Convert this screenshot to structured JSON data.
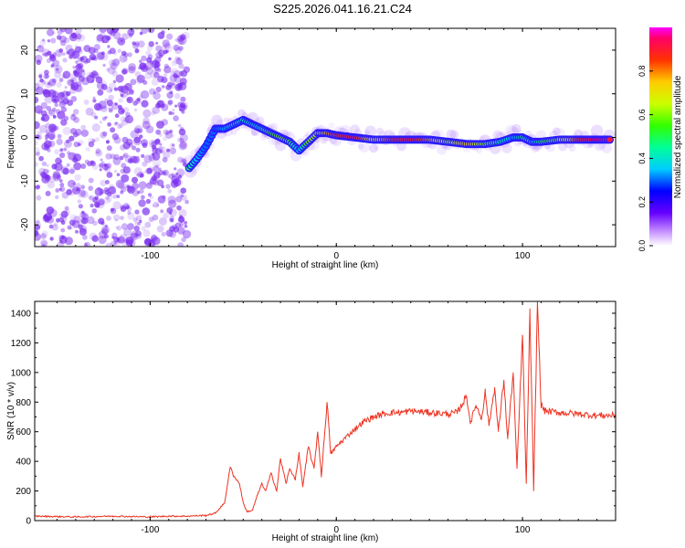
{
  "title": "S225.2026.041.16.21.C24",
  "colors": {
    "line": "#ee3322",
    "scatter": "#7a2cf0",
    "axes": "#000000"
  },
  "chart_data": [
    {
      "type": "heatmap",
      "title": "S225.2026.041.16.21.C24",
      "xlabel": "Height of straight line (km)",
      "ylabel": "Frequency (Hz)",
      "xlim": [
        -162,
        150
      ],
      "ylim": [
        -25,
        25
      ],
      "xticks": [
        -100,
        0,
        100
      ],
      "yticks": [
        -20,
        -10,
        0,
        10,
        20
      ],
      "xtick_labels": [
        "-100",
        "0",
        "100"
      ],
      "ytick_labels": [
        "-20",
        "-10",
        "0",
        "10",
        "20"
      ],
      "noise_region_x": [
        -162,
        -80
      ],
      "ridge": [
        {
          "x": -79,
          "y": -7,
          "a": 0.5
        },
        {
          "x": -75,
          "y": -5,
          "a": 0.35
        },
        {
          "x": -70,
          "y": -2,
          "a": 0.3
        },
        {
          "x": -65,
          "y": 2,
          "a": 0.3
        },
        {
          "x": -60,
          "y": 2,
          "a": 0.35
        },
        {
          "x": -55,
          "y": 3,
          "a": 0.4
        },
        {
          "x": -50,
          "y": 4,
          "a": 0.45
        },
        {
          "x": -45,
          "y": 3,
          "a": 0.4
        },
        {
          "x": -40,
          "y": 2,
          "a": 0.45
        },
        {
          "x": -35,
          "y": 1,
          "a": 0.55
        },
        {
          "x": -30,
          "y": 0,
          "a": 0.6
        },
        {
          "x": -25,
          "y": -1,
          "a": 0.55
        },
        {
          "x": -20,
          "y": -3,
          "a": 0.35
        },
        {
          "x": -15,
          "y": -1,
          "a": 0.6
        },
        {
          "x": -10,
          "y": 1,
          "a": 0.65
        },
        {
          "x": -5,
          "y": 1,
          "a": 0.75
        },
        {
          "x": 0,
          "y": 0.5,
          "a": 0.85
        },
        {
          "x": 10,
          "y": 0,
          "a": 0.9
        },
        {
          "x": 20,
          "y": -0.5,
          "a": 0.7
        },
        {
          "x": 30,
          "y": -0.5,
          "a": 0.85
        },
        {
          "x": 40,
          "y": -0.5,
          "a": 0.9
        },
        {
          "x": 50,
          "y": -0.5,
          "a": 0.8
        },
        {
          "x": 60,
          "y": -1,
          "a": 0.6
        },
        {
          "x": 70,
          "y": -1.5,
          "a": 0.75
        },
        {
          "x": 80,
          "y": -1.5,
          "a": 0.6
        },
        {
          "x": 88,
          "y": -1,
          "a": 0.45
        },
        {
          "x": 95,
          "y": 0,
          "a": 0.35
        },
        {
          "x": 100,
          "y": 0,
          "a": 0.5
        },
        {
          "x": 105,
          "y": -1,
          "a": 0.35
        },
        {
          "x": 110,
          "y": -1,
          "a": 0.5
        },
        {
          "x": 120,
          "y": -0.5,
          "a": 0.6
        },
        {
          "x": 130,
          "y": -0.5,
          "a": 0.85
        },
        {
          "x": 140,
          "y": -0.5,
          "a": 0.95
        },
        {
          "x": 148,
          "y": -0.5,
          "a": 0.9
        }
      ],
      "colorbar": {
        "label": "Normalized spectral amplitude",
        "range": [
          0,
          1
        ],
        "ticks": [
          0.0,
          0.2,
          0.4,
          0.6,
          0.8
        ],
        "tick_labels": [
          "0.0",
          "0.2",
          "0.4",
          "0.6",
          "0.8"
        ]
      }
    },
    {
      "type": "line",
      "xlabel": "Height of straight line (km)",
      "ylabel": "SNR (10 * v/v)",
      "xlim": [
        -162,
        150
      ],
      "ylim": [
        0,
        1480
      ],
      "xticks": [
        -100,
        0,
        100
      ],
      "yticks": [
        0,
        200,
        400,
        600,
        800,
        1000,
        1200,
        1400
      ],
      "xtick_labels": [
        "-100",
        "0",
        "100"
      ],
      "ytick_labels": [
        "0",
        "200",
        "400",
        "600",
        "800",
        "1000",
        "1200",
        "1400"
      ],
      "series": [
        {
          "name": "SNR",
          "x": [
            -162,
            -140,
            -120,
            -100,
            -90,
            -80,
            -70,
            -65,
            -60,
            -57,
            -55,
            -52,
            -50,
            -48,
            -45,
            -43,
            -40,
            -38,
            -35,
            -32,
            -30,
            -27,
            -25,
            -22,
            -20,
            -18,
            -15,
            -12,
            -10,
            -8,
            -5,
            -3,
            0,
            5,
            10,
            15,
            20,
            25,
            30,
            35,
            40,
            50,
            60,
            65,
            70,
            72,
            75,
            78,
            80,
            82,
            85,
            87,
            90,
            92,
            95,
            97,
            100,
            102,
            104,
            106,
            108,
            110,
            112,
            120,
            130,
            140,
            150
          ],
          "values": [
            30,
            25,
            30,
            25,
            30,
            30,
            35,
            50,
            120,
            360,
            300,
            250,
            120,
            60,
            70,
            150,
            250,
            200,
            320,
            200,
            420,
            250,
            350,
            280,
            450,
            230,
            500,
            350,
            600,
            300,
            800,
            450,
            500,
            560,
            620,
            670,
            700,
            720,
            730,
            730,
            740,
            730,
            720,
            730,
            840,
            660,
            780,
            690,
            870,
            640,
            900,
            600,
            950,
            550,
            1000,
            350,
            1250,
            250,
            1400,
            200,
            1480,
            780,
            740,
            730,
            720,
            710,
            710
          ]
        }
      ]
    }
  ]
}
